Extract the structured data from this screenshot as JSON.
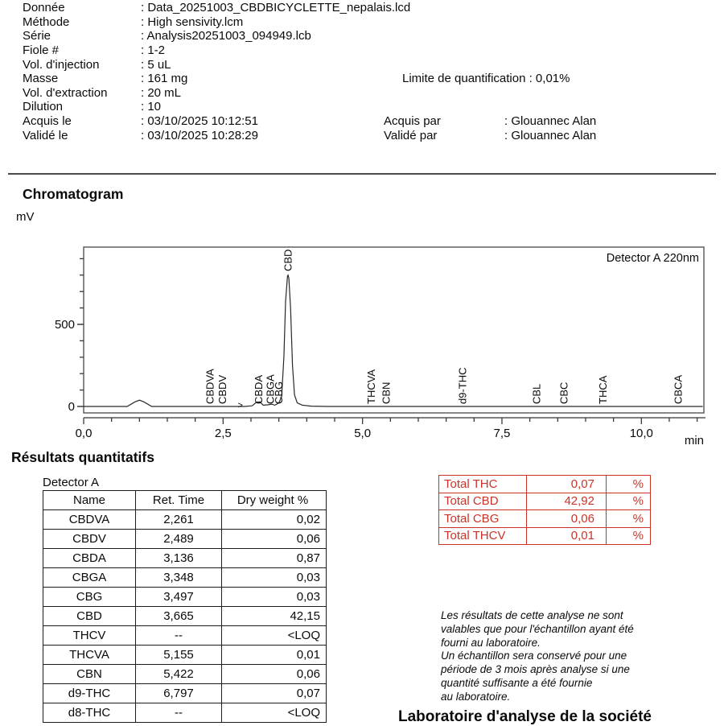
{
  "metadata": {
    "rows": [
      {
        "label": "Donnée",
        "value": ": Data_20251003_CBDBICYCLETTE_nepalais.lcd"
      },
      {
        "label": "Méthode",
        "value": ": High sensivity.lcm"
      },
      {
        "label": "Série",
        "value": ": Analysis20251003_094949.lcb"
      },
      {
        "label": "Fiole #",
        "value": ": 1-2"
      },
      {
        "label": "Vol. d'injection",
        "value": ": 5 uL"
      },
      {
        "label": "Masse",
        "value": ": 161 mg"
      },
      {
        "label": "Vol. d'extraction",
        "value": ": 20 mL"
      },
      {
        "label": "Dilution",
        "value": ": 10"
      },
      {
        "label": "Acquis le",
        "value": ": 03/10/2025 10:12:51"
      },
      {
        "label": "Validé le",
        "value": ": 03/10/2025 10:28:29"
      }
    ],
    "loq": "Limite de quantification : 0,01%",
    "right_rows": [
      {
        "label": "Acquis par",
        "value": ": Glouannec Alan"
      },
      {
        "label": "Validé par",
        "value": ": Glouannec Alan"
      }
    ]
  },
  "chart_data": {
    "type": "line",
    "title": "Chromatogram",
    "detector_label": "Detector A 220nm",
    "xlabel": "min",
    "ylabel": "mV",
    "xlim": [
      0,
      11.1
    ],
    "ylim": [
      0,
      970
    ],
    "x_major_ticks": [
      0,
      2.5,
      5,
      7.5,
      10
    ],
    "x_tick_labels": [
      "0,0",
      "2,5",
      "5,0",
      "7,5",
      "10,0"
    ],
    "x_minor_step": 0.5,
    "y_major_ticks": [
      0,
      500
    ],
    "y_tick_labels": [
      "0",
      "500"
    ],
    "y_minor_step": 100,
    "signal": [
      [
        0,
        0
      ],
      [
        0.78,
        0
      ],
      [
        0.92,
        28
      ],
      [
        1.0,
        38
      ],
      [
        1.08,
        28
      ],
      [
        1.22,
        0
      ],
      [
        2.88,
        0
      ],
      [
        3.02,
        4
      ],
      [
        3.1,
        26
      ],
      [
        3.16,
        28
      ],
      [
        3.22,
        8
      ],
      [
        3.3,
        10
      ],
      [
        3.37,
        14
      ],
      [
        3.43,
        8
      ],
      [
        3.5,
        22
      ],
      [
        3.55,
        60
      ],
      [
        3.59,
        300
      ],
      [
        3.62,
        640
      ],
      [
        3.655,
        795
      ],
      [
        3.665,
        800
      ],
      [
        3.68,
        780
      ],
      [
        3.71,
        600
      ],
      [
        3.745,
        250
      ],
      [
        3.78,
        70
      ],
      [
        3.83,
        22
      ],
      [
        3.92,
        8
      ],
      [
        4.08,
        2
      ],
      [
        4.4,
        0
      ],
      [
        11.1,
        0
      ]
    ],
    "peaks": [
      {
        "name": "CBDVA",
        "t": 2.261
      },
      {
        "name": "CBDV",
        "t": 2.489
      },
      {
        "name": "CBDA",
        "t": 3.136
      },
      {
        "name": "CBGA",
        "t": 3.348
      },
      {
        "name": "CBG",
        "t": 3.497
      },
      {
        "name": "CBD",
        "t": 3.665,
        "label_at_peak": true
      },
      {
        "name": "THCVA",
        "t": 5.155
      },
      {
        "name": "CBN",
        "t": 5.422
      },
      {
        "name": "d9-THC",
        "t": 6.797
      },
      {
        "name": "CBL",
        "t": 8.12
      },
      {
        "name": "CBC",
        "t": 8.61
      },
      {
        "name": "THCA",
        "t": 9.31
      },
      {
        "name": "CBCA",
        "t": 10.66
      }
    ],
    "peak_marker": {
      "symbol": ">",
      "t": 2.82
    }
  },
  "results": {
    "section_title": "Résultats quantitatifs",
    "detector": "Detector A",
    "columns": [
      "Name",
      "Ret. Time",
      "Dry weight %"
    ],
    "rows": [
      [
        "CBDVA",
        "2,261",
        "0,02"
      ],
      [
        "CBDV",
        "2,489",
        "0,06"
      ],
      [
        "CBDA",
        "3,136",
        "0,87"
      ],
      [
        "CBGA",
        "3,348",
        "0,03"
      ],
      [
        "CBG",
        "3,497",
        "0,03"
      ],
      [
        "CBD",
        "3,665",
        "42,15"
      ],
      [
        "THCV",
        "--",
        "<LOQ"
      ],
      [
        "THCVA",
        "5,155",
        "0,01"
      ],
      [
        "CBN",
        "5,422",
        "0,06"
      ],
      [
        "d9-THC",
        "6,797",
        "0,07"
      ],
      [
        "d8-THC",
        "--",
        "<LOQ"
      ]
    ]
  },
  "totals": {
    "accent_color": "#cc3328",
    "rows": [
      {
        "label": "Total THC",
        "value": "0,07",
        "unit": "%"
      },
      {
        "label": "Total CBD",
        "value": "42,92",
        "unit": "%"
      },
      {
        "label": "Total CBG",
        "value": "0,06",
        "unit": "%"
      },
      {
        "label": "Total THCV",
        "value": "0,01",
        "unit": "%"
      }
    ]
  },
  "disclaimer": "Les résultats de cette analyse ne sont\nvalables que pour l'échantillon ayant été\nfourni au laboratoire.\nUn échantillon sera conservé pour une\npériode de 3 mois après analyse si une\nquantité suffisante a été fournie\nau laboratoire.",
  "footer_heading": "Laboratoire d'analyse de la société"
}
